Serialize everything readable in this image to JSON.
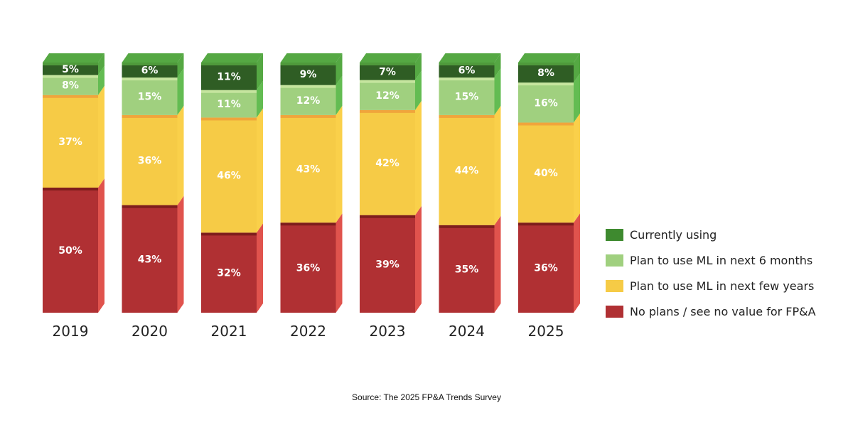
{
  "chart_data": {
    "type": "bar",
    "stacked": true,
    "categories": [
      "2019",
      "2020",
      "2021",
      "2022",
      "2023",
      "2024",
      "2025"
    ],
    "series": [
      {
        "name": "No plans / see no value for FP&A",
        "values": [
          50,
          43,
          32,
          36,
          39,
          35,
          36
        ],
        "color": "#b03033",
        "side_color": "#e0534d",
        "top_color": "#7e1d1d",
        "value_labels": [
          "50%",
          "43%",
          "32%",
          "36%",
          "39%",
          "35%",
          "36%"
        ]
      },
      {
        "name": "Plan to use ML in next few years",
        "values": [
          37,
          36,
          46,
          43,
          42,
          44,
          40
        ],
        "color": "#f6cb46",
        "side_color": "#fad04a",
        "top_color": "#f0a53c",
        "value_labels": [
          "37%",
          "36%",
          "46%",
          "43%",
          "42%",
          "44%",
          "40%"
        ]
      },
      {
        "name": "Plan to use ML in next 6 months",
        "values": [
          8,
          15,
          11,
          12,
          12,
          15,
          16
        ],
        "color": "#a0d07f",
        "side_color": "#63bc52",
        "top_color": "#c6e59f",
        "value_labels": [
          "8%",
          "15%",
          "11%",
          "12%",
          "12%",
          "15%",
          "16%"
        ]
      },
      {
        "name": "Currently using",
        "values": [
          5,
          6,
          11,
          9,
          7,
          6,
          8
        ],
        "color": "#2f5d24",
        "side_color": "#55a843",
        "top_color": "#4f9a3b",
        "value_labels": [
          "5%",
          "6%",
          "11%",
          "9%",
          "7%",
          "6%",
          "8%"
        ]
      }
    ],
    "legend": [
      {
        "label": "Currently using",
        "color": "#3e8a2f"
      },
      {
        "label": "Plan to use ML in next 6 months",
        "color": "#a0d07f"
      },
      {
        "label": "Plan to use ML in next few years",
        "color": "#f6cb46"
      },
      {
        "label": "No plans / see no value for FP&A",
        "color": "#b03033"
      }
    ],
    "legend_position": "right",
    "grid": false,
    "ylim": [
      0,
      100
    ],
    "source": "Source: The 2025 FP&A Trends Survey"
  }
}
